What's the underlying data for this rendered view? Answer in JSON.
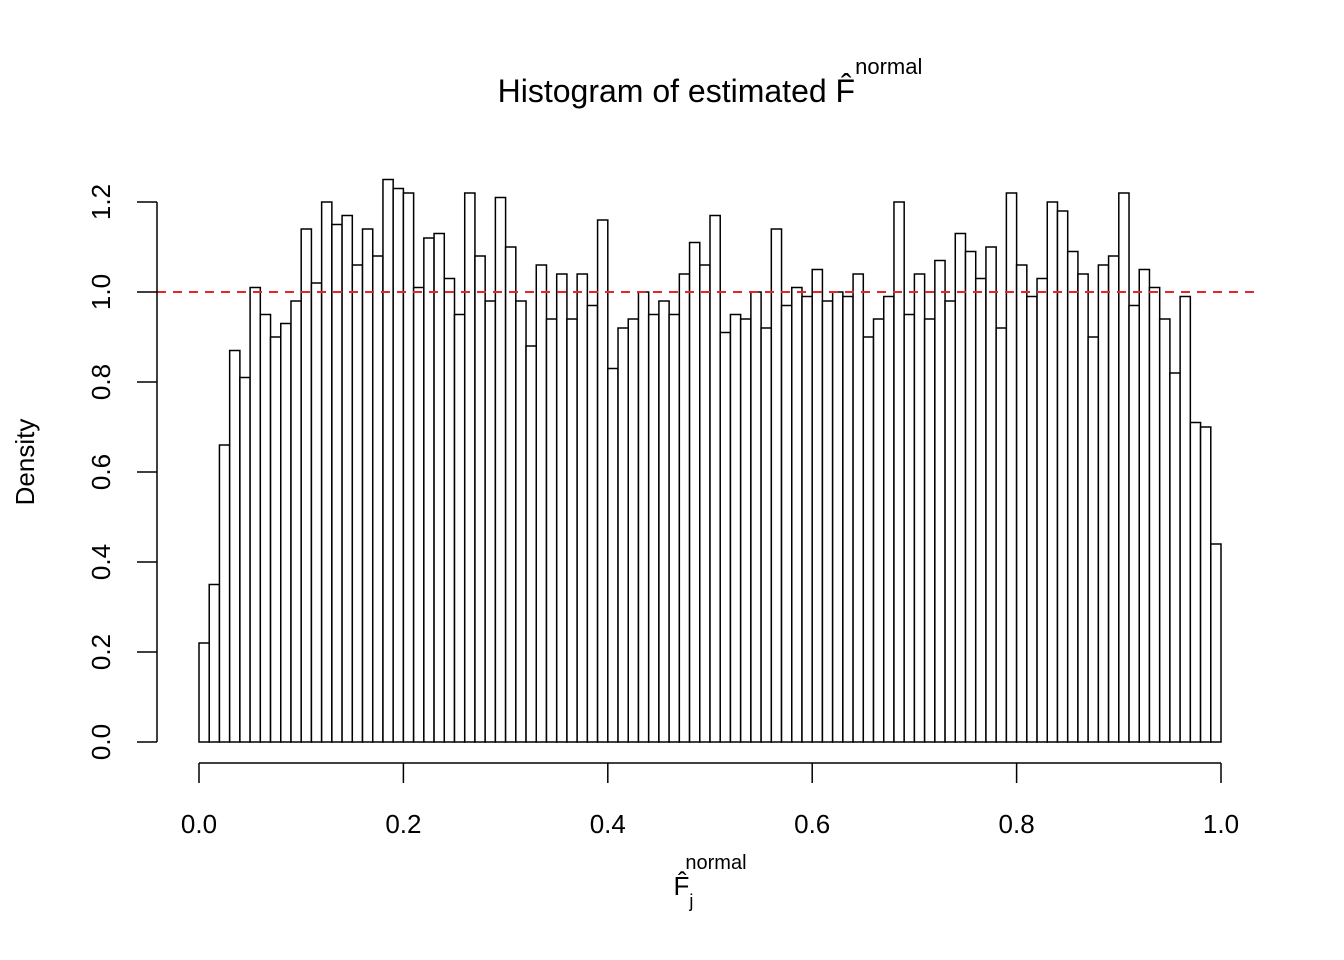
{
  "chart_data": {
    "type": "histogram",
    "title": "Histogram of estimated F̂",
    "title_superscript": "normal",
    "xlabel": "F̂",
    "xlabel_subscript": "j",
    "xlabel_superscript": "normal",
    "ylabel": "Density",
    "bins": [
      0,
      0.01,
      0.02,
      0.03,
      0.04,
      0.05,
      0.06,
      0.07,
      0.08,
      0.09,
      0.1,
      0.11,
      0.12,
      0.13,
      0.14,
      0.15,
      0.16,
      0.17,
      0.18,
      0.19,
      0.2,
      0.21,
      0.22,
      0.23,
      0.24,
      0.25,
      0.26,
      0.27,
      0.28,
      0.29,
      0.3,
      0.31,
      0.32,
      0.33,
      0.34,
      0.35,
      0.36,
      0.37,
      0.38,
      0.39,
      0.4,
      0.41,
      0.42,
      0.43,
      0.44,
      0.45,
      0.46,
      0.47,
      0.48,
      0.49,
      0.5,
      0.51,
      0.52,
      0.53,
      0.54,
      0.55,
      0.56,
      0.57,
      0.58,
      0.59,
      0.6,
      0.61,
      0.62,
      0.63,
      0.64,
      0.65,
      0.66,
      0.67,
      0.68,
      0.69,
      0.7,
      0.71,
      0.72,
      0.73,
      0.74,
      0.75,
      0.76,
      0.77,
      0.78,
      0.79,
      0.8,
      0.81,
      0.82,
      0.83,
      0.84,
      0.85,
      0.86,
      0.87,
      0.88,
      0.89,
      0.9,
      0.91,
      0.92,
      0.93,
      0.94,
      0.95,
      0.96,
      0.97,
      0.98,
      0.99,
      1
    ],
    "values": [
      0.22,
      0.35,
      0.66,
      0.87,
      0.81,
      1.01,
      0.95,
      0.9,
      0.93,
      0.98,
      1.14,
      1.02,
      1.2,
      1.15,
      1.17,
      1.06,
      1.14,
      1.08,
      1.25,
      1.23,
      1.22,
      1.01,
      1.12,
      1.13,
      1.03,
      0.95,
      1.22,
      1.08,
      0.98,
      1.21,
      1.1,
      0.98,
      0.88,
      1.06,
      0.94,
      1.04,
      0.94,
      1.04,
      0.97,
      1.16,
      0.83,
      0.92,
      0.94,
      1.0,
      0.95,
      0.98,
      0.95,
      1.04,
      1.11,
      1.06,
      1.17,
      0.91,
      0.95,
      0.94,
      1.0,
      0.92,
      1.14,
      0.97,
      1.01,
      0.99,
      1.05,
      0.98,
      1.0,
      0.99,
      1.04,
      0.9,
      0.94,
      0.99,
      1.2,
      0.95,
      1.04,
      0.94,
      1.07,
      0.98,
      1.13,
      1.09,
      1.03,
      1.1,
      0.92,
      1.22,
      1.06,
      0.99,
      1.03,
      1.2,
      1.18,
      1.09,
      1.04,
      0.9,
      1.06,
      1.08,
      1.22,
      0.97,
      1.05,
      1.01,
      0.94,
      0.82,
      0.99,
      0.71,
      0.7,
      0.44
    ],
    "color": "#ffffff",
    "edgecolor": "#000000",
    "reference_line": {
      "value": 1,
      "color": "#e3262b"
    },
    "xlim": [
      0,
      1
    ],
    "ylim": [
      0,
      1.2
    ],
    "xticks": [
      {
        "value": 0,
        "label": "0.0"
      },
      0.2,
      0.4,
      0.6,
      0.8,
      {
        "value": 1,
        "label": "1.0"
      }
    ],
    "yticks": [
      {
        "value": 0,
        "label": "0.0"
      },
      0.2,
      0.4,
      0.6,
      0.8,
      {
        "value": 1,
        "label": "1.0"
      },
      1.2
    ]
  }
}
